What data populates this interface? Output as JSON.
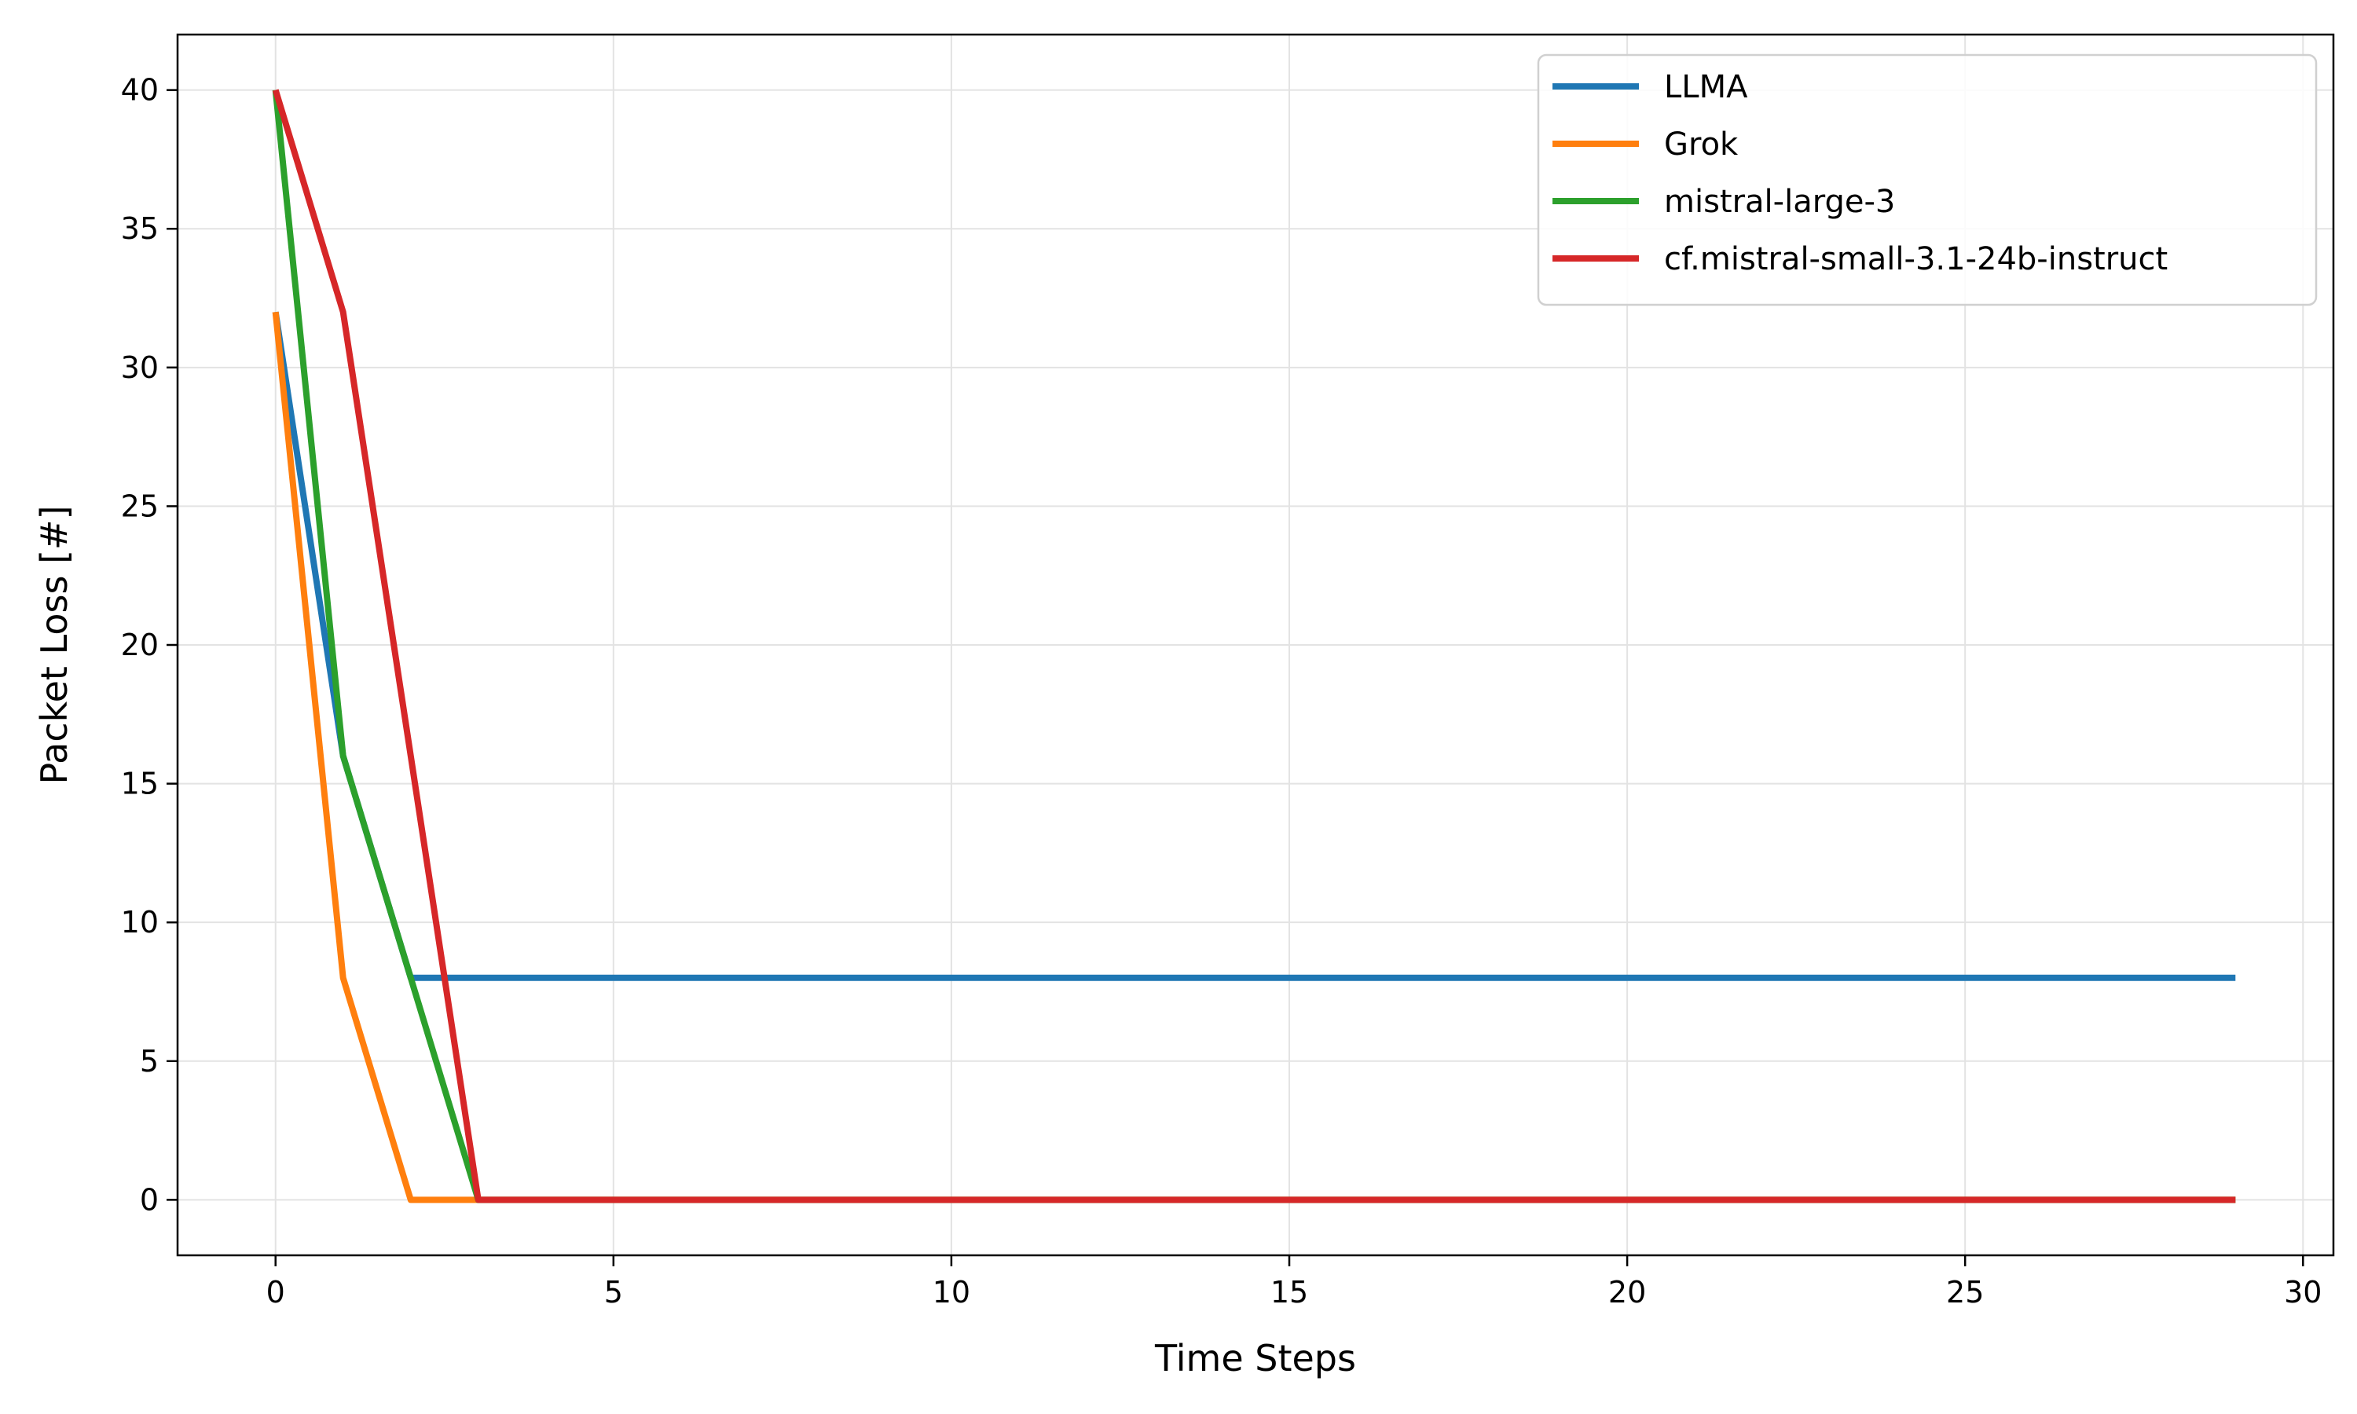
{
  "chart_data": {
    "type": "line",
    "title": "",
    "xlabel": "Time Steps",
    "ylabel": "Packet Loss [#]",
    "xlim": [
      -1.45,
      30.45
    ],
    "ylim": [
      -2,
      42
    ],
    "xticks": [
      0,
      5,
      10,
      15,
      20,
      25,
      30
    ],
    "yticks": [
      0,
      5,
      10,
      15,
      20,
      25,
      30,
      35,
      40
    ],
    "grid": true,
    "legend_position": "top-right",
    "x": [
      0,
      1,
      2,
      3,
      4,
      5,
      6,
      7,
      8,
      9,
      10,
      11,
      12,
      13,
      14,
      15,
      16,
      17,
      18,
      19,
      20,
      21,
      22,
      23,
      24,
      25,
      26,
      27,
      28,
      29
    ],
    "series": [
      {
        "name": "LLMA",
        "color": "#1f77b4",
        "values": [
          32,
          16,
          8,
          8,
          8,
          8,
          8,
          8,
          8,
          8,
          8,
          8,
          8,
          8,
          8,
          8,
          8,
          8,
          8,
          8,
          8,
          8,
          8,
          8,
          8,
          8,
          8,
          8,
          8,
          8
        ]
      },
      {
        "name": "Grok",
        "color": "#ff7f0e",
        "values": [
          32,
          8,
          0,
          0,
          0,
          0,
          0,
          0,
          0,
          0,
          0,
          0,
          0,
          0,
          0,
          0,
          0,
          0,
          0,
          0,
          0,
          0,
          0,
          0,
          0,
          0,
          0,
          0,
          0,
          0
        ]
      },
      {
        "name": "mistral-large-3",
        "color": "#2ca02c",
        "values": [
          40,
          16,
          8,
          0,
          0,
          0,
          0,
          0,
          0,
          0,
          0,
          0,
          0,
          0,
          0,
          0,
          0,
          0,
          0,
          0,
          0,
          0,
          0,
          0,
          0,
          0,
          0,
          0,
          0,
          0
        ]
      },
      {
        "name": "cf.mistral-small-3.1-24b-instruct",
        "color": "#d62728",
        "values": [
          40,
          32,
          16,
          0,
          0,
          0,
          0,
          0,
          0,
          0,
          0,
          0,
          0,
          0,
          0,
          0,
          0,
          0,
          0,
          0,
          0,
          0,
          0,
          0,
          0,
          0,
          0,
          0,
          0,
          0
        ]
      }
    ]
  }
}
